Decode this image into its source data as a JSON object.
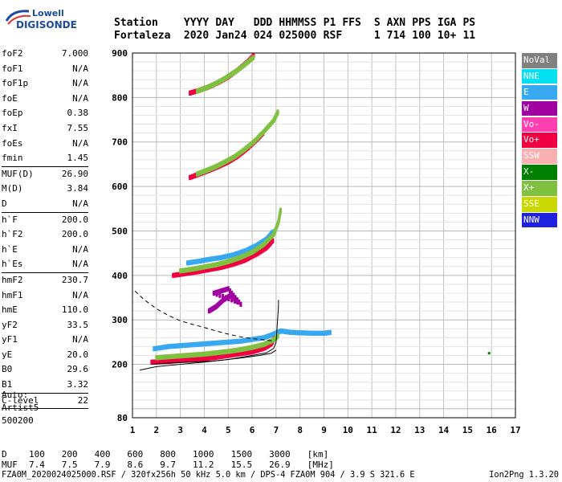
{
  "logo": {
    "line1": "Lowell",
    "line2": "DIGISONDE"
  },
  "header": {
    "row1": [
      "Station",
      "YYYY",
      "DAY",
      "DDD",
      "HHMMSS",
      "P1",
      "FFS",
      "S",
      "AXN",
      "PPS",
      "IGA",
      "PS"
    ],
    "row2": [
      "Fortaleza",
      "2020",
      "Jan24",
      "024",
      "025000",
      "RSF",
      "",
      "1",
      "714",
      "100",
      "10+",
      "11"
    ]
  },
  "params": [
    {
      "label": "foF2",
      "value": "7.000"
    },
    {
      "label": "foF1",
      "value": "N/A"
    },
    {
      "label": "foF1p",
      "value": "N/A"
    },
    {
      "label": "foE",
      "value": "N/A"
    },
    {
      "label": "foEp",
      "value": "0.38"
    },
    {
      "label": "fxI",
      "value": "7.55"
    },
    {
      "label": "foEs",
      "value": "N/A"
    },
    {
      "label": "fmin",
      "value": "1.45",
      "sep": true
    },
    {
      "label": "MUF(D)",
      "value": "26.90"
    },
    {
      "label": "M(D)",
      "value": "3.84"
    },
    {
      "label": "D",
      "value": "N/A",
      "sep": true
    },
    {
      "label": "h`F",
      "value": "200.0"
    },
    {
      "label": "h`F2",
      "value": "200.0"
    },
    {
      "label": "h`E",
      "value": "N/A"
    },
    {
      "label": "h`Es",
      "value": "N/A",
      "sep": true
    },
    {
      "label": "hmF2",
      "value": "230.7"
    },
    {
      "label": "hmF1",
      "value": "N/A"
    },
    {
      "label": "hmE",
      "value": "110.0"
    },
    {
      "label": "yF2",
      "value": "33.5"
    },
    {
      "label": "yF1",
      "value": "N/A"
    },
    {
      "label": "yE",
      "value": "20.0"
    },
    {
      "label": "B0",
      "value": "29.6"
    },
    {
      "label": "B1",
      "value": "3.32",
      "sep": true
    },
    {
      "label": "C-level",
      "value": "22",
      "sep": true
    }
  ],
  "auto": {
    "line1": "Auto:",
    "line2": "Artist5",
    "line3": "500200"
  },
  "legend": [
    {
      "label": "NoVal",
      "color": "#808080"
    },
    {
      "label": "NNE",
      "color": "#00e0f0"
    },
    {
      "label": "E",
      "color": "#38a8f0"
    },
    {
      "label": "W",
      "color": "#a000a0"
    },
    {
      "label": "Vo-",
      "color": "#ff40b0"
    },
    {
      "label": "Vo+",
      "color": "#f00040"
    },
    {
      "label": "SSW",
      "color": "#f8b0b0"
    },
    {
      "label": "X-",
      "color": "#008000"
    },
    {
      "label": "X+",
      "color": "#80c040"
    },
    {
      "label": "SSE",
      "color": "#c8d800"
    },
    {
      "label": "NNW",
      "color": "#2020e0"
    }
  ],
  "footer": {
    "d_row": [
      "D",
      "100",
      "200",
      "400",
      "600",
      "800",
      "1000",
      "1500",
      "3000",
      "[km]"
    ],
    "muf_row": [
      "MUF",
      "7.4",
      "7.5",
      "7.9",
      "8.6",
      "9.7",
      "11.2",
      "15.5",
      "26.9",
      "[MHz]"
    ],
    "file_line": "FZA0M_2020024025000.RSF / 320fx256h 50 kHz 5.0 km / DPS-4 FZA0M 904 / 3.9 S 321.6 E",
    "version": "Ion2Png 1.3.20"
  },
  "chart_data": {
    "type": "scatter",
    "title": "",
    "xlabel": "",
    "ylabel": "",
    "xlim": [
      1,
      17
    ],
    "ylim": [
      80,
      900
    ],
    "xticks": [
      "1",
      "2",
      "3",
      "4",
      "5",
      "6",
      "7",
      "8",
      "9",
      "10",
      "11",
      "12",
      "13",
      "14",
      "15",
      "16",
      "17"
    ],
    "yticks": [
      "200",
      "300",
      "400",
      "500",
      "600",
      "700",
      "800",
      "900"
    ],
    "ytick_bottom": "80",
    "traces": [
      {
        "name": "E",
        "color": "#38a8f0",
        "points": [
          [
            1.9,
            235
          ],
          [
            2.5,
            240
          ],
          [
            3,
            242
          ],
          [
            3.5,
            244
          ],
          [
            4,
            246
          ],
          [
            4.5,
            248
          ],
          [
            5,
            250
          ],
          [
            5.5,
            252
          ],
          [
            6,
            256
          ],
          [
            6.5,
            260
          ],
          [
            6.9,
            268
          ],
          [
            7.2,
            275
          ],
          [
            7.6,
            272
          ],
          [
            8,
            271
          ],
          [
            8.5,
            270
          ],
          [
            9,
            270
          ],
          [
            9.3,
            272
          ]
        ]
      },
      {
        "name": "Vo+ F2",
        "color": "#f00040",
        "points": [
          [
            1.8,
            205
          ],
          [
            2.2,
            206
          ],
          [
            2.6,
            207
          ],
          [
            3,
            209
          ],
          [
            3.5,
            211
          ],
          [
            4,
            213
          ],
          [
            4.5,
            216
          ],
          [
            5,
            220
          ],
          [
            5.5,
            224
          ],
          [
            6,
            228
          ],
          [
            6.5,
            236
          ],
          [
            6.8,
            246
          ],
          [
            6.95,
            260
          ]
        ]
      },
      {
        "name": "X+ F2",
        "color": "#80c040",
        "points": [
          [
            2,
            215
          ],
          [
            2.5,
            217
          ],
          [
            3,
            219
          ],
          [
            3.5,
            221
          ],
          [
            4,
            223
          ],
          [
            4.5,
            226
          ],
          [
            5,
            229
          ],
          [
            5.5,
            233
          ],
          [
            6,
            238
          ],
          [
            6.5,
            245
          ],
          [
            6.9,
            255
          ],
          [
            7.1,
            265
          ]
        ]
      },
      {
        "name": "E 2-hop",
        "color": "#38a8f0",
        "points": [
          [
            3.3,
            428
          ],
          [
            3.8,
            432
          ],
          [
            4.2,
            436
          ],
          [
            4.7,
            440
          ],
          [
            5.2,
            446
          ],
          [
            5.7,
            455
          ],
          [
            6.2,
            468
          ],
          [
            6.6,
            482
          ],
          [
            6.9,
            500
          ]
        ]
      },
      {
        "name": "Vo+ 2-hop",
        "color": "#f00040",
        "points": [
          [
            2.7,
            400
          ],
          [
            3.2,
            404
          ],
          [
            3.7,
            408
          ],
          [
            4.2,
            413
          ],
          [
            4.7,
            418
          ],
          [
            5.2,
            425
          ],
          [
            5.7,
            434
          ],
          [
            6.2,
            448
          ],
          [
            6.6,
            462
          ],
          [
            6.9,
            480
          ]
        ]
      },
      {
        "name": "X+ 2-hop",
        "color": "#80c040",
        "points": [
          [
            3,
            410
          ],
          [
            3.5,
            414
          ],
          [
            4,
            419
          ],
          [
            4.5,
            424
          ],
          [
            5,
            431
          ],
          [
            5.5,
            440
          ],
          [
            6,
            452
          ],
          [
            6.5,
            470
          ],
          [
            6.9,
            492
          ],
          [
            7.1,
            520
          ],
          [
            7.2,
            550
          ]
        ]
      },
      {
        "name": "Vo+ 3-hop",
        "color": "#f00040",
        "points": [
          [
            3.4,
            620
          ],
          [
            3.8,
            628
          ],
          [
            4.2,
            636
          ],
          [
            4.6,
            645
          ],
          [
            5,
            655
          ],
          [
            5.4,
            668
          ],
          [
            5.8,
            685
          ],
          [
            6.2,
            705
          ],
          [
            6.5,
            722
          ]
        ]
      },
      {
        "name": "X+ 3-hop",
        "color": "#80c040",
        "points": [
          [
            3.7,
            628
          ],
          [
            4.1,
            636
          ],
          [
            4.5,
            645
          ],
          [
            4.9,
            656
          ],
          [
            5.3,
            668
          ],
          [
            5.7,
            684
          ],
          [
            6.1,
            702
          ],
          [
            6.5,
            724
          ],
          [
            6.9,
            748
          ],
          [
            7.1,
            770
          ]
        ]
      },
      {
        "name": "Vo+ 4-hop",
        "color": "#f00040",
        "points": [
          [
            3.4,
            810
          ],
          [
            3.8,
            816
          ],
          [
            4.2,
            824
          ],
          [
            4.6,
            834
          ],
          [
            5,
            846
          ],
          [
            5.4,
            862
          ],
          [
            5.8,
            880
          ],
          [
            6.1,
            896
          ]
        ]
      },
      {
        "name": "X+ 4-hop",
        "color": "#80c040",
        "points": [
          [
            3.7,
            814
          ],
          [
            4.1,
            822
          ],
          [
            4.5,
            832
          ],
          [
            4.9,
            844
          ],
          [
            5.3,
            858
          ],
          [
            5.7,
            874
          ],
          [
            6.1,
            892
          ]
        ]
      },
      {
        "name": "W",
        "color": "#a000a0",
        "points": [
          [
            4.2,
            320
          ],
          [
            4.5,
            330
          ],
          [
            4.8,
            345
          ],
          [
            5.1,
            355
          ],
          [
            5.4,
            340
          ],
          [
            4.4,
            360
          ],
          [
            5,
            370
          ],
          [
            5.6,
            330
          ]
        ]
      }
    ],
    "profile_line": {
      "style": "solid",
      "points": [
        [
          1.3,
          187
        ],
        [
          2,
          195
        ],
        [
          3,
          200
        ],
        [
          4,
          205
        ],
        [
          5,
          211
        ],
        [
          6,
          220
        ],
        [
          6.6,
          226
        ],
        [
          6.9,
          236
        ],
        [
          7,
          250
        ],
        [
          7.05,
          290
        ],
        [
          7.1,
          330
        ],
        [
          7.1,
          345
        ]
      ]
    },
    "muf_curve": {
      "style": "dashed",
      "points": [
        [
          1.1,
          365
        ],
        [
          1.5,
          345
        ],
        [
          2,
          325
        ],
        [
          2.5,
          310
        ],
        [
          3,
          298
        ],
        [
          3.5,
          290
        ],
        [
          4,
          283
        ],
        [
          4.5,
          275
        ],
        [
          5,
          268
        ],
        [
          5.5,
          262
        ],
        [
          6,
          258
        ],
        [
          6.5,
          255
        ],
        [
          6.9,
          252
        ]
      ]
    },
    "profile_lower": {
      "style": "solid",
      "points": [
        [
          1.8,
          200
        ],
        [
          2.5,
          203
        ],
        [
          3.5,
          205
        ],
        [
          4.5,
          208
        ],
        [
          5.5,
          214
        ],
        [
          6.3,
          220
        ],
        [
          6.8,
          225
        ],
        [
          7,
          232
        ]
      ]
    }
  }
}
